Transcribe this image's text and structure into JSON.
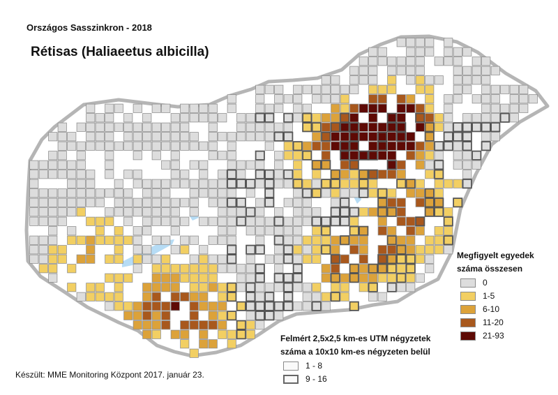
{
  "header": {
    "subtitle": "Országos Sasszinkron - 2018",
    "title": "Rétisas (Haliaeetus albicilla)"
  },
  "legend_counts": {
    "title_line1": "Megfigyelt egyedek",
    "title_line2": "száma összesen",
    "items": [
      {
        "label": "0",
        "color": "#dddddd"
      },
      {
        "label": "1-5",
        "color": "#f2cf63"
      },
      {
        "label": "6-10",
        "color": "#dca23a"
      },
      {
        "label": "11-20",
        "color": "#a8581d"
      },
      {
        "label": "21-93",
        "color": "#5e0a05"
      }
    ]
  },
  "legend_grid": {
    "title_line1": "Felmért 2,5x2,5 km-es UTM négyzetek",
    "title_line2": "száma a 10x10 km-es négyzeten belül",
    "items": [
      {
        "label": "1 - 8",
        "style": "thin"
      },
      {
        "label": "9 - 16",
        "style": "thick"
      }
    ]
  },
  "footer": {
    "credit": "Készült: MME Monitoring Központ 2017. január 23."
  },
  "colors": {
    "border": "#a0a0a0",
    "water": "#b6dcf5",
    "cell_outline": "#8f8f8f",
    "cell_outline_thick": "#555555"
  }
}
